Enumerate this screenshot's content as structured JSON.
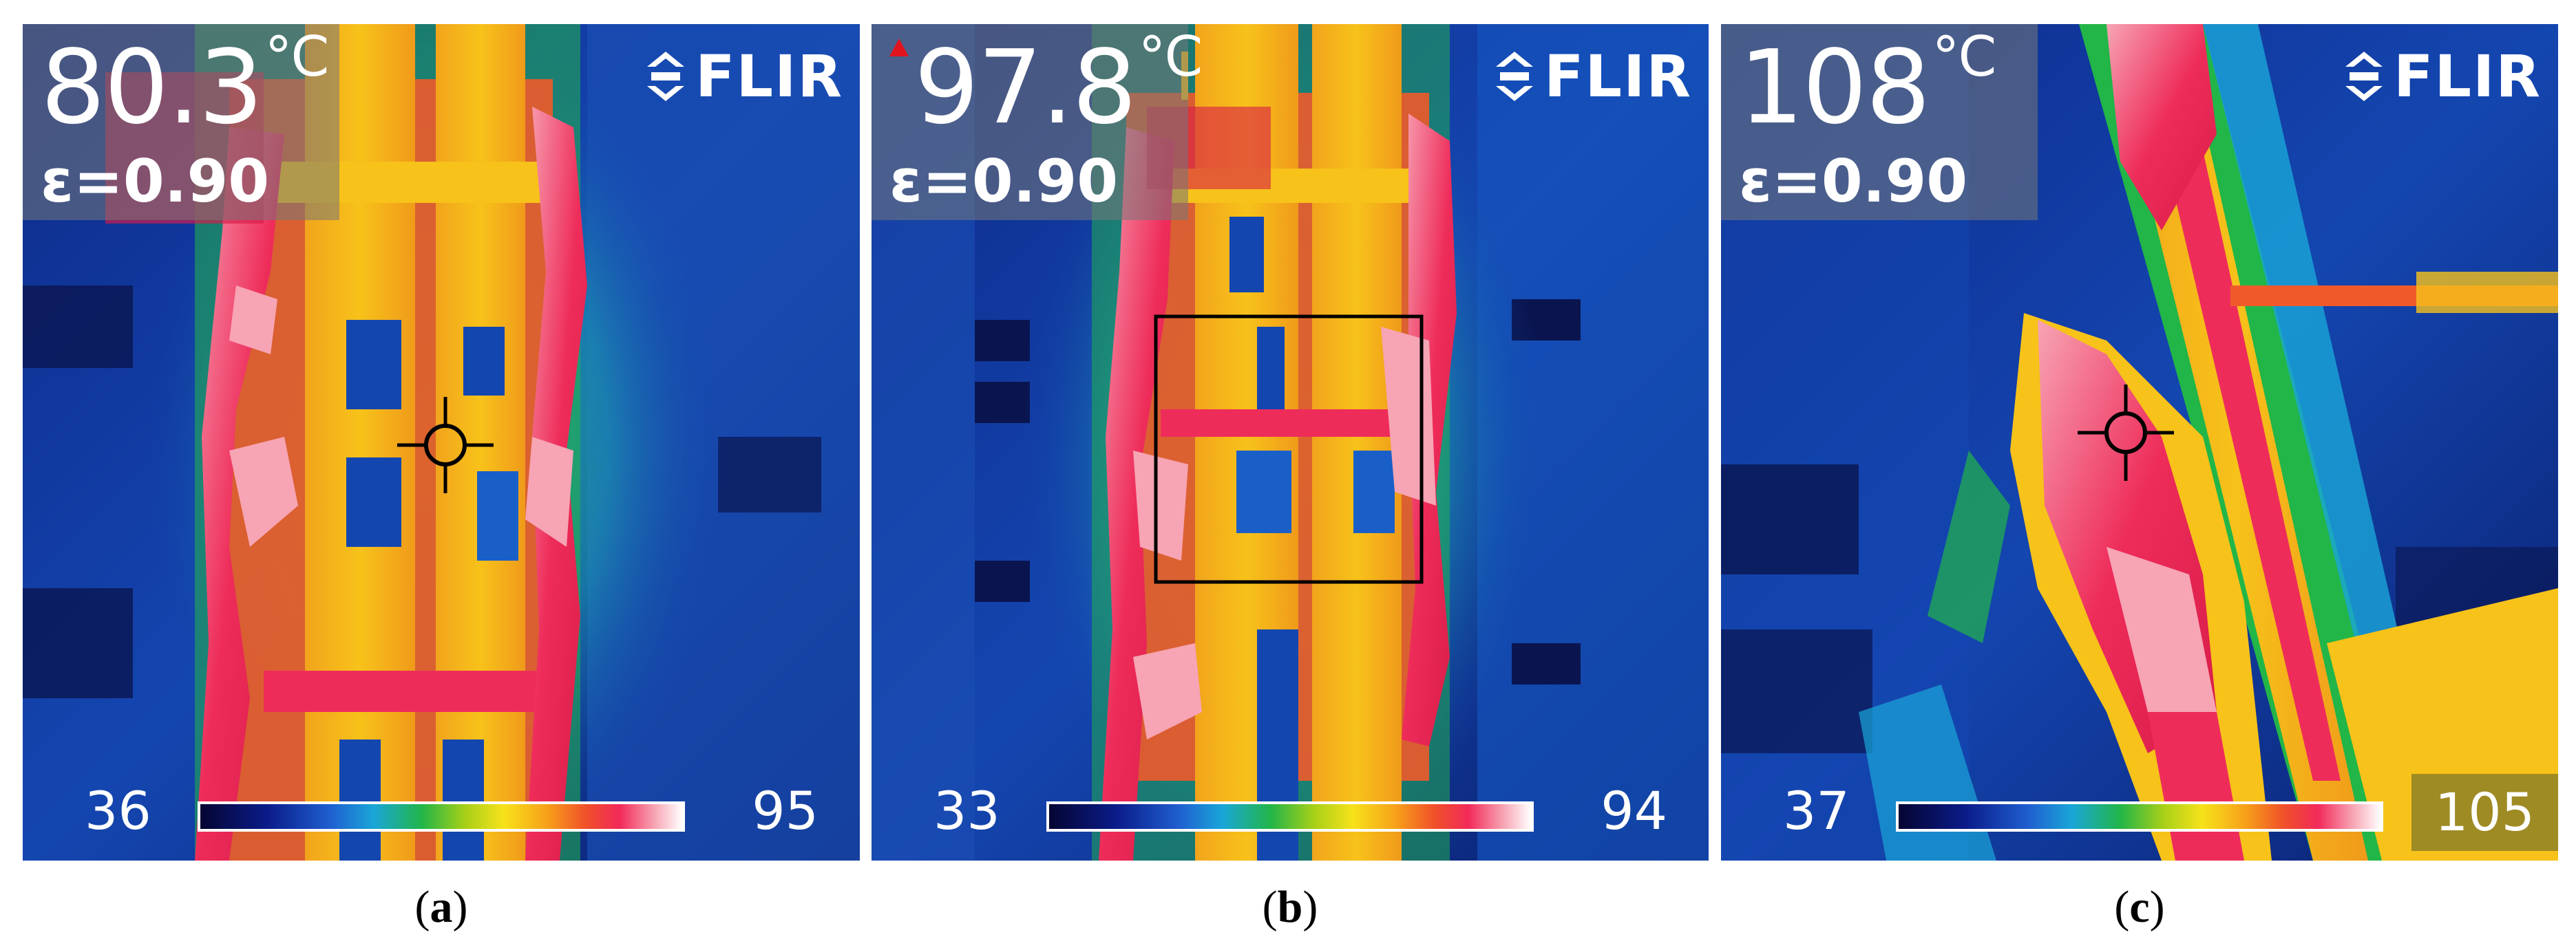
{
  "panels": [
    {
      "temperature": "80.3",
      "unit": "°C",
      "emissivity": "ε=0.90",
      "brand": "FLIR",
      "scale_min": "36",
      "scale_max": "95",
      "label": "a"
    },
    {
      "temperature": "97.8",
      "unit": "°C",
      "emissivity": "ε=0.90",
      "brand": "FLIR",
      "scale_min": "33",
      "scale_max": "94",
      "label": "b"
    },
    {
      "temperature": "108",
      "unit": "°C",
      "emissivity": "ε=0.90",
      "brand": "FLIR",
      "scale_min": "37",
      "scale_max": "105",
      "label": "c"
    }
  ],
  "colors": {
    "cold": "#0b1a63",
    "hot": "#f22a5a",
    "alarm": "#e0141e"
  }
}
